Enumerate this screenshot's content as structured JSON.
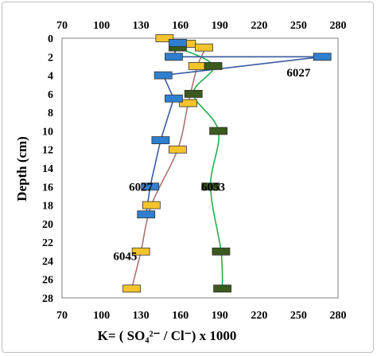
{
  "chart_data": {
    "type": "line",
    "xlabel": "K= ( SO₄²⁻ / Cl⁻) x 1000",
    "ylabel": "Depth (cm)",
    "xlim": [
      70,
      280
    ],
    "ylim": [
      0,
      28
    ],
    "y_inverted": true,
    "x_ticks": [
      "70",
      "100",
      "130",
      "160",
      "190",
      "220",
      "250",
      "280"
    ],
    "y_ticks": [
      "0",
      "2",
      "4",
      "6",
      "8",
      "10",
      "12",
      "14",
      "16",
      "18",
      "20",
      "22",
      "24",
      "26",
      "28"
    ],
    "grid": false,
    "annotations": [
      {
        "text": "6027",
        "x": 250,
        "y": 3.7
      },
      {
        "text": "6027",
        "x": 130,
        "y": 16
      },
      {
        "text": "6053",
        "x": 185,
        "y": 16
      },
      {
        "text": "6045",
        "x": 118,
        "y": 23.5
      }
    ],
    "series": [
      {
        "name": "6045",
        "color": "#f5c42c",
        "line_color": "#b07070",
        "points": [
          {
            "x": 148,
            "y": 0
          },
          {
            "x": 165,
            "y": 0.6
          },
          {
            "x": 178,
            "y": 1
          },
          {
            "x": 173,
            "y": 3
          },
          {
            "x": 166,
            "y": 7
          },
          {
            "x": 158,
            "y": 12
          },
          {
            "x": 138,
            "y": 18
          },
          {
            "x": 130,
            "y": 23
          },
          {
            "x": 123,
            "y": 27
          }
        ]
      },
      {
        "name": "6053",
        "color": "#3a5a1e",
        "line_color": "#22b04a",
        "points": [
          {
            "x": 158,
            "y": 1
          },
          {
            "x": 185,
            "y": 3
          },
          {
            "x": 170,
            "y": 6
          },
          {
            "x": 189,
            "y": 10
          },
          {
            "x": 183,
            "y": 16
          },
          {
            "x": 191,
            "y": 23
          },
          {
            "x": 192,
            "y": 27
          }
        ]
      },
      {
        "name": "6027",
        "color": "#2f7fd0",
        "line_color": "#3a5aa0",
        "points": [
          {
            "x": 158,
            "y": 0.5
          },
          {
            "x": 155,
            "y": 2
          },
          {
            "x": 268,
            "y": 2
          },
          {
            "x": 147,
            "y": 4
          },
          {
            "x": 155,
            "y": 6.5
          },
          {
            "x": 145,
            "y": 11
          },
          {
            "x": 137,
            "y": 16
          },
          {
            "x": 134,
            "y": 19
          }
        ]
      }
    ]
  }
}
